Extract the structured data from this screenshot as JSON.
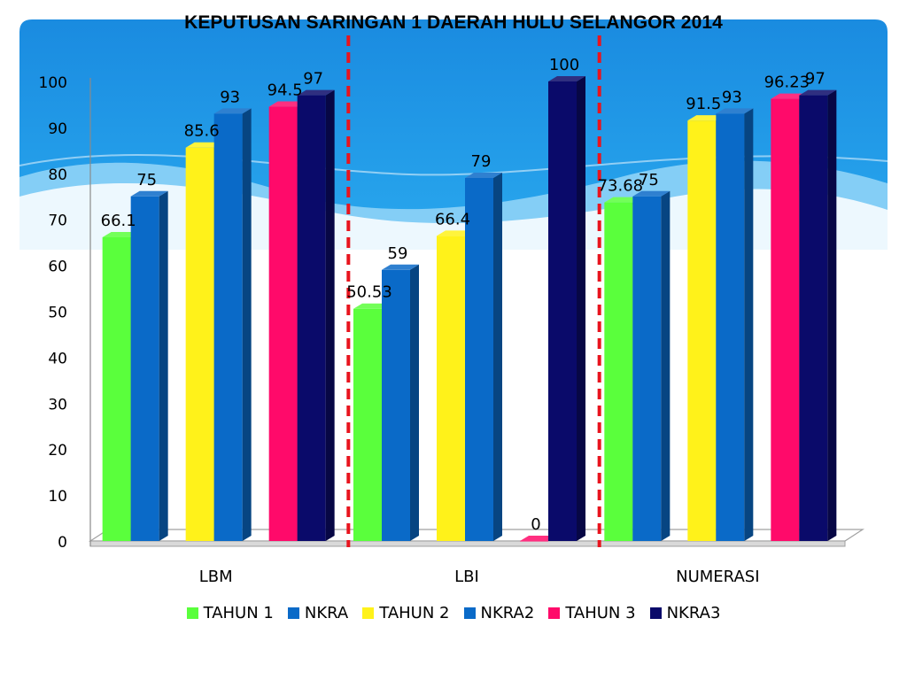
{
  "slide": {
    "title": "KEPUTUSAN SARINGAN 1 DAERAH HULU SELANGOR 2014"
  },
  "chart_data": {
    "type": "bar",
    "style": "3d-clustered",
    "title": "KEPUTUSAN SARINGAN 1 DAERAH HULU SELANGOR 2014",
    "categories": [
      "LBM",
      "LBI",
      "NUMERASI"
    ],
    "series": [
      {
        "name": "TAHUN 1",
        "color": "#5aff3c",
        "values": [
          66.1,
          50.53,
          73.68
        ],
        "labels": [
          "66.1",
          "50.53",
          "73.68"
        ]
      },
      {
        "name": "NKRA",
        "color": "#0a6ac8",
        "values": [
          75,
          59,
          75
        ],
        "labels": [
          "75",
          "59",
          "75"
        ]
      },
      {
        "name": "TAHUN 2",
        "color": "#fff21a",
        "values": [
          85.6,
          66.4,
          91.5
        ],
        "labels": [
          "85.6",
          "66.4",
          "91.5"
        ]
      },
      {
        "name": "NKRA2",
        "color": "#0a6ac8",
        "values": [
          93,
          79,
          93
        ],
        "labels": [
          "93",
          "79",
          "93"
        ]
      },
      {
        "name": "TAHUN 3",
        "color": "#ff0a6a",
        "values": [
          94.5,
          0,
          96.23
        ],
        "labels": [
          "94.5",
          "0",
          "96.23"
        ]
      },
      {
        "name": "NKRA3",
        "color": "#0a0a6a",
        "values": [
          97,
          100,
          97
        ],
        "labels": [
          "97",
          "100",
          "97"
        ]
      }
    ],
    "y_ticks": [
      "0",
      "10",
      "20",
      "30",
      "40",
      "50",
      "60",
      "70",
      "80",
      "90",
      "100"
    ],
    "ylim": [
      0,
      100
    ],
    "xlabel": "",
    "ylabel": "",
    "grid": false,
    "legend_position": "bottom",
    "category_separator_color": "#e8141e"
  }
}
